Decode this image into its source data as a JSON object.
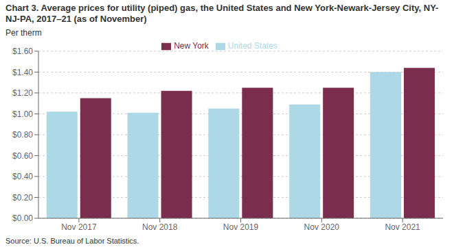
{
  "chart_data": {
    "type": "bar",
    "title": "Chart 3. Average prices for utility (piped) gas, the United States and New York-Newark-Jersey City, NY-NJ-PA, 2017–21 (as of November)",
    "y_label": "Per therm",
    "source": "Source: U.S. Bureau of Labor Statistics.",
    "categories": [
      "Nov 2017",
      "Nov 2018",
      "Nov 2019",
      "Nov 2020",
      "Nov 2021"
    ],
    "series": [
      {
        "name": "United States",
        "color": "#ADD8E6",
        "values": [
          1.02,
          1.01,
          1.05,
          1.09,
          1.4
        ]
      },
      {
        "name": "New York",
        "color": "#7B2D4E",
        "values": [
          1.15,
          1.22,
          1.25,
          1.25,
          1.44
        ]
      }
    ],
    "ylim": [
      0.0,
      1.6
    ],
    "yticks": [
      {
        "value": 0.0,
        "label": "$0.00"
      },
      {
        "value": 0.2,
        "label": "$0.20"
      },
      {
        "value": 0.4,
        "label": "$0.40"
      },
      {
        "value": 0.6,
        "label": "$0.60"
      },
      {
        "value": 0.8,
        "label": "$0.80"
      },
      {
        "value": 1.0,
        "label": "$1.00"
      },
      {
        "value": 1.2,
        "label": "$1.20"
      },
      {
        "value": 1.4,
        "label": "$1.40"
      },
      {
        "value": 1.6,
        "label": "$1.60"
      }
    ],
    "grid": true,
    "legend": "top"
  }
}
